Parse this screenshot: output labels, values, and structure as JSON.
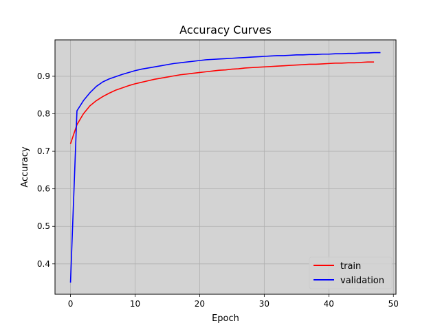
{
  "chart_data": {
    "type": "line",
    "title": "Accuracy Curves",
    "xlabel": "Epoch",
    "ylabel": "Accuracy",
    "xlim": [
      -2.4,
      50.4
    ],
    "ylim": [
      0.319,
      0.997
    ],
    "xticks": [
      0,
      10,
      20,
      30,
      40,
      50
    ],
    "yticks": [
      0.4,
      0.5,
      0.6,
      0.7,
      0.8,
      0.9
    ],
    "xtick_labels": [
      "0",
      "10",
      "20",
      "30",
      "40",
      "50"
    ],
    "ytick_labels": [
      "0.4",
      "0.5",
      "0.6",
      "0.7",
      "0.8",
      "0.9"
    ],
    "grid": true,
    "legend_position": "lower-right",
    "background": "#d3d3d3",
    "series": [
      {
        "name": "train",
        "color": "#ff0000",
        "x": [
          0,
          1,
          2,
          3,
          4,
          5,
          6,
          7,
          8,
          9,
          10,
          11,
          12,
          13,
          14,
          15,
          16,
          17,
          18,
          19,
          20,
          21,
          22,
          23,
          24,
          25,
          26,
          27,
          28,
          29,
          30,
          31,
          32,
          33,
          34,
          35,
          36,
          37,
          38,
          39,
          40,
          41,
          42,
          43,
          44,
          45,
          46,
          47
        ],
        "y": [
          0.72,
          0.771,
          0.8,
          0.821,
          0.835,
          0.846,
          0.855,
          0.863,
          0.869,
          0.875,
          0.88,
          0.884,
          0.888,
          0.892,
          0.895,
          0.898,
          0.901,
          0.904,
          0.906,
          0.908,
          0.91,
          0.912,
          0.914,
          0.916,
          0.917,
          0.919,
          0.92,
          0.922,
          0.923,
          0.924,
          0.925,
          0.926,
          0.927,
          0.928,
          0.929,
          0.93,
          0.931,
          0.932,
          0.932,
          0.933,
          0.934,
          0.935,
          0.935,
          0.936,
          0.936,
          0.937,
          0.938,
          0.938
        ]
      },
      {
        "name": "validation",
        "color": "#0000ff",
        "x": [
          0,
          1,
          2,
          3,
          4,
          5,
          6,
          7,
          8,
          9,
          10,
          11,
          12,
          13,
          14,
          15,
          16,
          17,
          18,
          19,
          20,
          21,
          22,
          23,
          24,
          25,
          26,
          27,
          28,
          29,
          30,
          31,
          32,
          33,
          34,
          35,
          36,
          37,
          38,
          39,
          40,
          41,
          42,
          43,
          44,
          45,
          46,
          47,
          48
        ],
        "y": [
          0.35,
          0.808,
          0.835,
          0.856,
          0.873,
          0.885,
          0.893,
          0.899,
          0.905,
          0.91,
          0.915,
          0.919,
          0.922,
          0.925,
          0.928,
          0.931,
          0.934,
          0.936,
          0.938,
          0.94,
          0.942,
          0.944,
          0.945,
          0.946,
          0.947,
          0.948,
          0.949,
          0.95,
          0.951,
          0.952,
          0.953,
          0.954,
          0.955,
          0.955,
          0.956,
          0.957,
          0.957,
          0.958,
          0.958,
          0.959,
          0.959,
          0.96,
          0.96,
          0.961,
          0.961,
          0.962,
          0.962,
          0.963,
          0.963
        ]
      }
    ]
  }
}
